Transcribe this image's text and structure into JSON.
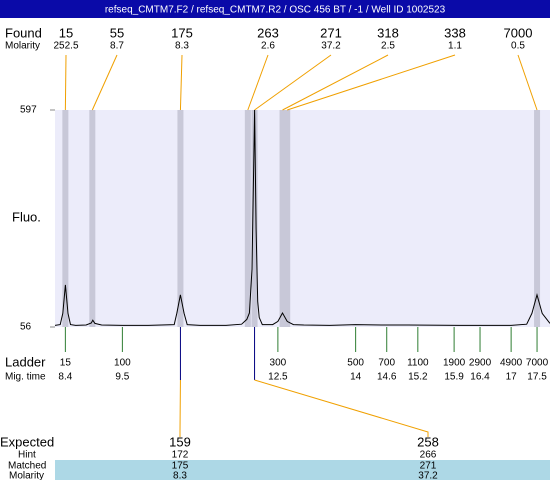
{
  "header": {
    "title": "refseq_CMTM7.F2 / refseq_CMTM7.R2 / OSC 456 BT  / -1 / Well ID 1002523"
  },
  "chart_data": {
    "type": "electropherogram",
    "found_label": "Found",
    "molarity_label": "Molarity",
    "found": {
      "sizes": [
        15,
        55,
        175,
        263,
        271,
        318,
        338,
        7000
      ],
      "molarity": [
        252.5,
        8.7,
        8.3,
        2.6,
        37.2,
        2.5,
        1.1,
        0.5
      ],
      "mig_times": [
        8.4,
        8.92,
        10.62,
        11.92,
        12.05,
        12.59,
        12.68,
        17.5
      ]
    },
    "y_label": "Fluo.",
    "ylim": [
      56,
      597
    ],
    "yticks": [
      56,
      597
    ],
    "xlim": [
      8.2,
      17.75
    ],
    "trace": {
      "x": [
        8.2,
        8.3,
        8.35,
        8.4,
        8.45,
        8.5,
        8.6,
        8.8,
        8.9,
        8.93,
        8.97,
        9.1,
        9.5,
        10.0,
        10.5,
        10.55,
        10.62,
        10.69,
        10.75,
        11.0,
        11.5,
        11.8,
        11.9,
        11.95,
        12.0,
        12.05,
        12.08,
        12.11,
        12.14,
        12.2,
        12.4,
        12.5,
        12.59,
        12.68,
        12.8,
        13.0,
        13.5,
        14.0,
        14.5,
        15.0,
        16.0,
        17.0,
        17.3,
        17.4,
        17.5,
        17.6,
        17.75
      ],
      "values": [
        60,
        62,
        90,
        161,
        90,
        62,
        60,
        61,
        66,
        73,
        65,
        61,
        60,
        60,
        62,
        90,
        136,
        90,
        62,
        60,
        60,
        63,
        75,
        91,
        200,
        597,
        300,
        120,
        80,
        62,
        62,
        70,
        91,
        70,
        62,
        61,
        60,
        62,
        61,
        61,
        60,
        60,
        63,
        90,
        136,
        90,
        65
      ],
      "color": "#000000"
    },
    "ladder_label": "Ladder",
    "mig_label": "Mig. time",
    "ladder": {
      "sizes": [
        15,
        100,
        300,
        500,
        700,
        1100,
        1900,
        2900,
        4900,
        7000
      ],
      "mig_times": [
        8.4,
        9.5,
        12.5,
        14,
        14.6,
        15.2,
        15.9,
        16.4,
        17,
        17.5
      ],
      "color": "#2e7d32"
    },
    "expected_label": "Expected",
    "hint_label": "Hint",
    "matched_label": "Matched",
    "expected_molarity_label": "Molarity",
    "expected": {
      "expected": [
        159,
        258
      ],
      "hint": [
        172,
        266
      ],
      "matched": [
        175,
        271
      ],
      "molarity": [
        8.3,
        37.2
      ]
    }
  }
}
